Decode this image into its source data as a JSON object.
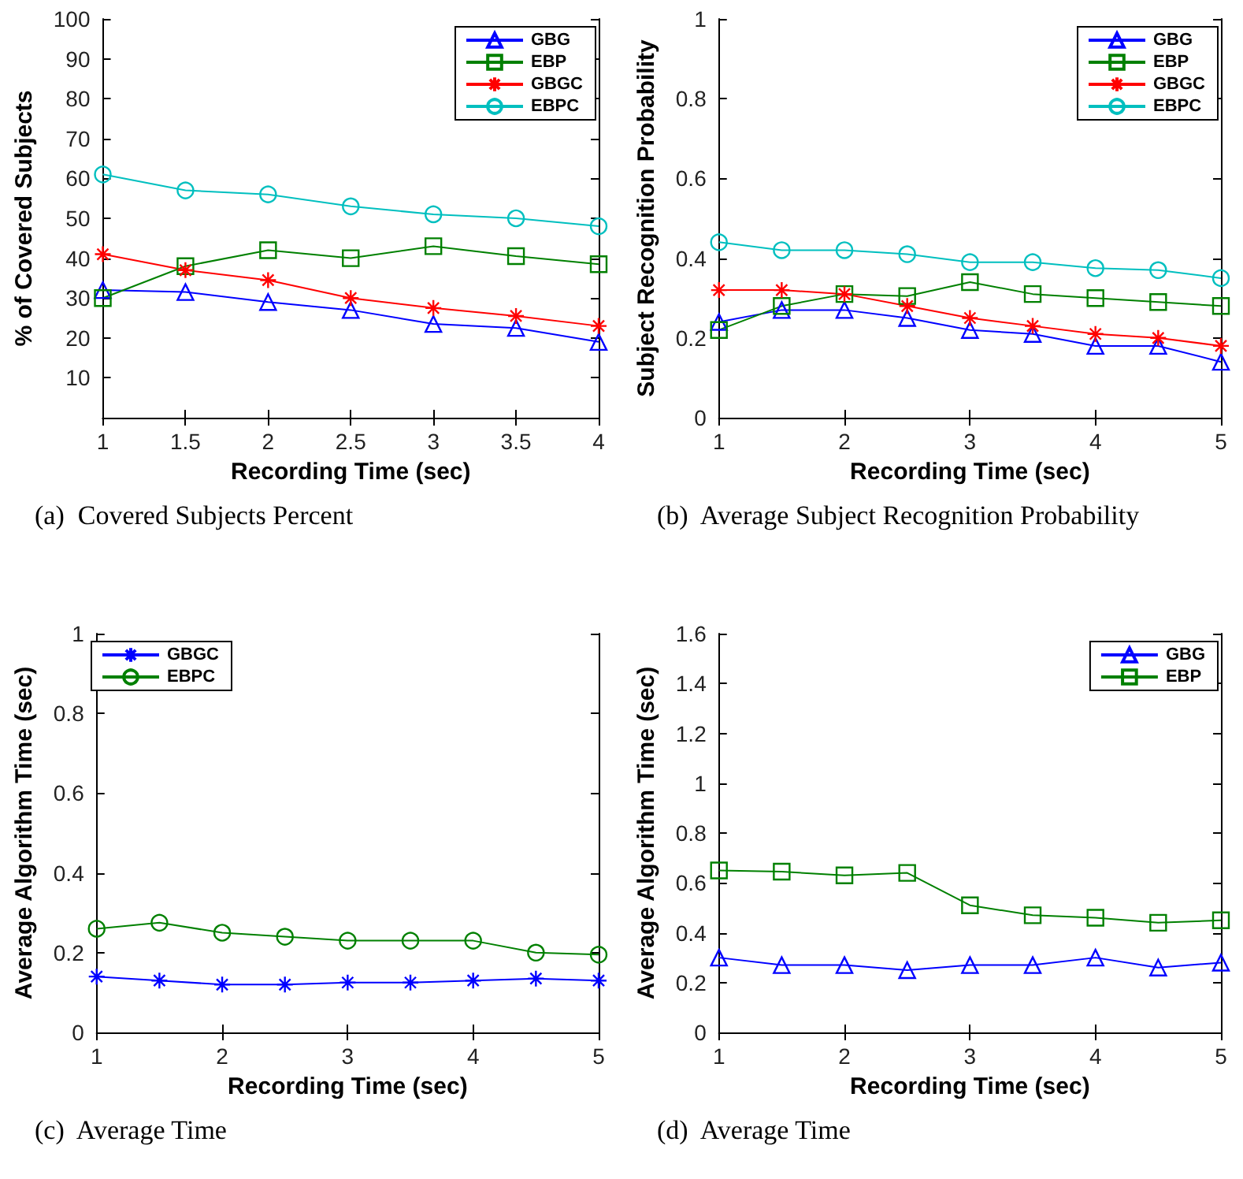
{
  "chart_data": [
    {
      "type": "line",
      "xlabel": "Recording Time (sec)",
      "ylabel": "% of Covered Subjects",
      "annotations": [
        "(a)  Covered Subjects Percent"
      ],
      "x": [
        1,
        1.5,
        2,
        2.5,
        3,
        3.5,
        4
      ],
      "xlim": [
        1,
        4
      ],
      "xticks": [
        1,
        1.5,
        2,
        2.5,
        3,
        3.5,
        4
      ],
      "ylim": [
        0,
        100
      ],
      "yticks": [
        10,
        20,
        30,
        40,
        50,
        60,
        70,
        80,
        90,
        100
      ],
      "legend": "top right",
      "grid": false,
      "line_style": "solid",
      "series": [
        {
          "name": "GBG",
          "color": "#0000ff",
          "marker": "triangle",
          "values": [
            32,
            31.5,
            29,
            27,
            23.5,
            22.5,
            19
          ]
        },
        {
          "name": "EBP",
          "color": "#008000",
          "marker": "square",
          "values": [
            30,
            38,
            42,
            40,
            43,
            40.5,
            38.5
          ]
        },
        {
          "name": "GBGC",
          "color": "#ff0000",
          "marker": "cross",
          "values": [
            41,
            37,
            34.5,
            30,
            27.5,
            25.5,
            23
          ]
        },
        {
          "name": "EBPC",
          "color": "#00bfbf",
          "marker": "circle",
          "values": [
            61,
            57,
            56,
            53,
            51,
            50,
            48
          ]
        }
      ]
    },
    {
      "type": "line",
      "xlabel": "Recording Time (sec)",
      "ylabel": "Subject Recognition Probability",
      "annotations": [
        "(b)  Average Subject Recognition Probability"
      ],
      "x": [
        1,
        1.5,
        2,
        2.5,
        3,
        3.5,
        4,
        4.5,
        5
      ],
      "xlim": [
        1,
        5
      ],
      "xticks": [
        1,
        2,
        3,
        4,
        5
      ],
      "ylim": [
        0,
        1
      ],
      "yticks": [
        0,
        0.2,
        0.4,
        0.6,
        0.8,
        1
      ],
      "legend": "top right",
      "grid": false,
      "line_style": "solid",
      "series": [
        {
          "name": "GBG",
          "color": "#0000ff",
          "marker": "triangle",
          "values": [
            0.24,
            0.27,
            0.27,
            0.25,
            0.22,
            0.21,
            0.18,
            0.18,
            0.14
          ]
        },
        {
          "name": "EBP",
          "color": "#008000",
          "marker": "square",
          "values": [
            0.22,
            0.28,
            0.31,
            0.305,
            0.34,
            0.31,
            0.3,
            0.29,
            0.28
          ]
        },
        {
          "name": "GBGC",
          "color": "#ff0000",
          "marker": "cross",
          "values": [
            0.32,
            0.32,
            0.31,
            0.28,
            0.25,
            0.23,
            0.21,
            0.2,
            0.18
          ]
        },
        {
          "name": "EBPC",
          "color": "#00bfbf",
          "marker": "circle",
          "values": [
            0.44,
            0.42,
            0.42,
            0.41,
            0.39,
            0.39,
            0.375,
            0.37,
            0.35
          ]
        }
      ]
    },
    {
      "type": "line",
      "xlabel": "Recording Time (sec)",
      "ylabel": "Average Algorithm Time (sec)",
      "annotations": [
        "(c)  Average Time"
      ],
      "x": [
        1,
        1.5,
        2,
        2.5,
        3,
        3.5,
        4,
        4.5,
        5
      ],
      "xlim": [
        1,
        5
      ],
      "xticks": [
        1,
        2,
        3,
        4,
        5
      ],
      "ylim": [
        0,
        1
      ],
      "yticks": [
        0,
        0.2,
        0.4,
        0.6,
        0.8,
        1
      ],
      "legend": "top left",
      "grid": false,
      "line_style": "solid",
      "series": [
        {
          "name": "GBGC",
          "color": "#0000ff",
          "marker": "cross",
          "values": [
            0.14,
            0.13,
            0.12,
            0.12,
            0.125,
            0.125,
            0.13,
            0.135,
            0.13
          ]
        },
        {
          "name": "EBPC",
          "color": "#008000",
          "marker": "circle",
          "values": [
            0.26,
            0.275,
            0.25,
            0.24,
            0.23,
            0.23,
            0.23,
            0.2,
            0.195
          ]
        }
      ]
    },
    {
      "type": "line",
      "xlabel": "Recording Time (sec)",
      "ylabel": "Average Algorithm Time (sec)",
      "annotations": [
        "(d)  Average Time"
      ],
      "x": [
        1,
        1.5,
        2,
        2.5,
        3,
        3.5,
        4,
        4.5,
        5
      ],
      "xlim": [
        1,
        5
      ],
      "xticks": [
        1,
        2,
        3,
        4,
        5
      ],
      "ylim": [
        0,
        1.6
      ],
      "yticks": [
        0,
        0.2,
        0.4,
        0.6,
        0.8,
        1,
        1.2,
        1.4,
        1.6
      ],
      "legend": "top right",
      "grid": false,
      "line_style": "solid",
      "series": [
        {
          "name": "GBG",
          "color": "#0000ff",
          "marker": "triangle",
          "values": [
            0.3,
            0.27,
            0.27,
            0.25,
            0.27,
            0.27,
            0.3,
            0.26,
            0.28
          ]
        },
        {
          "name": "EBP",
          "color": "#008000",
          "marker": "square",
          "values": [
            0.65,
            0.645,
            0.63,
            0.64,
            0.51,
            0.47,
            0.46,
            0.44,
            0.45
          ]
        }
      ]
    }
  ]
}
